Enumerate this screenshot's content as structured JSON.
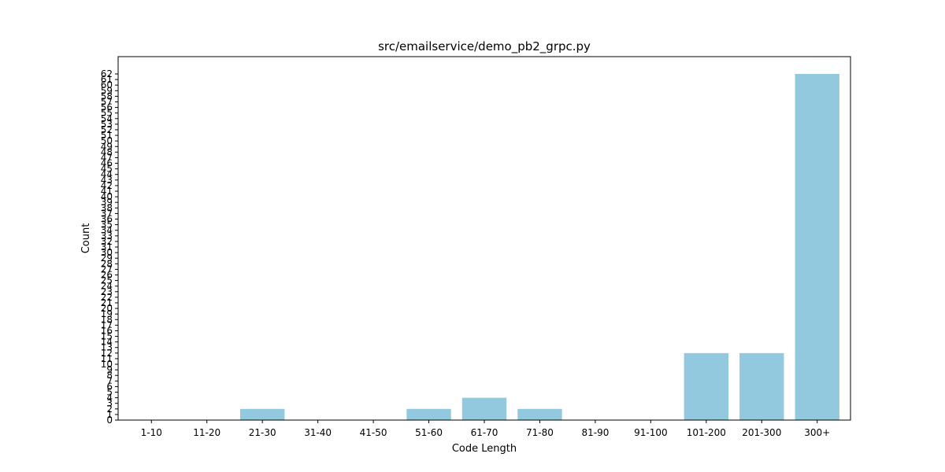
{
  "chart_data": {
    "type": "bar",
    "title": "src/emailservice/demo_pb2_grpc.py",
    "xlabel": "Code Length",
    "ylabel": "Count",
    "categories": [
      "1-10",
      "11-20",
      "21-30",
      "31-40",
      "41-50",
      "51-60",
      "61-70",
      "71-80",
      "81-90",
      "91-100",
      "101-200",
      "201-300",
      "300+"
    ],
    "values": [
      0,
      0,
      2,
      0,
      0,
      2,
      4,
      2,
      0,
      0,
      12,
      12,
      62
    ],
    "ylim": [
      0,
      65.1
    ],
    "yticks": [
      0,
      1,
      2,
      3,
      4,
      5,
      6,
      7,
      8,
      9,
      10,
      11,
      12,
      13,
      14,
      15,
      16,
      17,
      18,
      19,
      20,
      21,
      22,
      23,
      24,
      25,
      26,
      27,
      28,
      29,
      30,
      31,
      32,
      33,
      34,
      35,
      36,
      37,
      38,
      39,
      40,
      41,
      42,
      43,
      44,
      45,
      46,
      47,
      48,
      49,
      50,
      51,
      52,
      53,
      54,
      55,
      56,
      57,
      58,
      59,
      60,
      61,
      62
    ],
    "bar_color": "#92c9df",
    "grid": false,
    "legend": "none"
  }
}
